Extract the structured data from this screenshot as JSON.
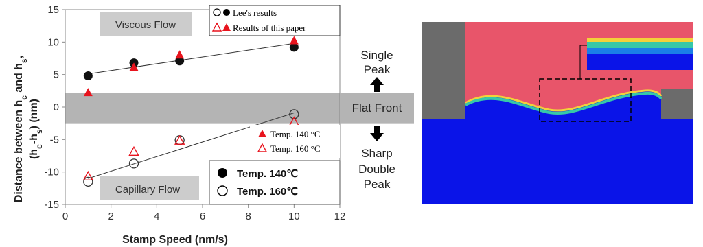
{
  "chart_data": {
    "type": "scatter",
    "xlabel": "Stamp Speed (nm/s)",
    "ylabel_line1": "Distance between h",
    "ylabel_sub1": "c",
    "ylabel_mid": " and h",
    "ylabel_sub2": "s",
    "ylabel_end": ",",
    "ylabel_line2_a": "(h",
    "ylabel_line2_sub1": "c",
    "ylabel_line2_b": "-h",
    "ylabel_line2_sub2": "s",
    "ylabel_line2_c": ") (nm)",
    "xlim": [
      0,
      12
    ],
    "ylim": [
      -15,
      15
    ],
    "x_ticks": [
      "0",
      "2",
      "4",
      "6",
      "8",
      "10",
      "12"
    ],
    "y_ticks": [
      "15",
      "10",
      "5",
      "0",
      "-5",
      "-10",
      "-15"
    ],
    "flat_front_band": [
      -2.5,
      2.2
    ],
    "series": [
      {
        "name": "Temp. 140 °C",
        "source": "Lee's results",
        "marker": "filled-circle",
        "x": [
          1,
          3,
          5,
          10
        ],
        "y": [
          4.8,
          6.8,
          7.1,
          9.2
        ]
      },
      {
        "name": "Temp. 140 °C",
        "source": "Results of this paper",
        "marker": "filled-triangle",
        "x": [
          1,
          3,
          5,
          10
        ],
        "y": [
          2.2,
          6.1,
          8.0,
          10.2
        ]
      },
      {
        "name": "Temp. 160 °C",
        "source": "Lee's results",
        "marker": "open-circle",
        "x": [
          1,
          3,
          5,
          10
        ],
        "y": [
          -11.5,
          -8.7,
          -5.1,
          -1.1
        ]
      },
      {
        "name": "Temp. 160 °C",
        "source": "Results of this paper",
        "marker": "open-triangle",
        "x": [
          1,
          3,
          5,
          10
        ],
        "y": [
          -10.7,
          -6.9,
          -5.2,
          -2.3
        ]
      }
    ],
    "fit_lines": [
      {
        "x": [
          1,
          10
        ],
        "y": [
          5.1,
          9.8
        ]
      },
      {
        "x": [
          1,
          10
        ],
        "y": [
          -11.0,
          -0.9
        ]
      }
    ],
    "region_labels": {
      "viscous": "Viscous Flow",
      "capillary": "Capillary Flow",
      "flat": "Flat Front",
      "single_1": "Single",
      "single_2": "Peak",
      "double_1": "Sharp",
      "double_2": "Double",
      "double_3": "Peak"
    },
    "legend_top": {
      "lee": "Lee's results",
      "paper": "Results of this paper"
    },
    "legend_mid": {
      "t140": "Temp. 140 °C",
      "t160": "Temp. 160 °C"
    },
    "legend_bottom": {
      "t140": "Temp. 140℃",
      "t160": "Temp. 160℃"
    }
  },
  "colors": {
    "band": "#b4b4b4",
    "region_box": "#cccccc",
    "red": "#e8141e",
    "black": "#111111",
    "sim_pink": "#e8556a",
    "sim_blue": "#0a14e8",
    "sim_gray": "#6b6b6b"
  }
}
